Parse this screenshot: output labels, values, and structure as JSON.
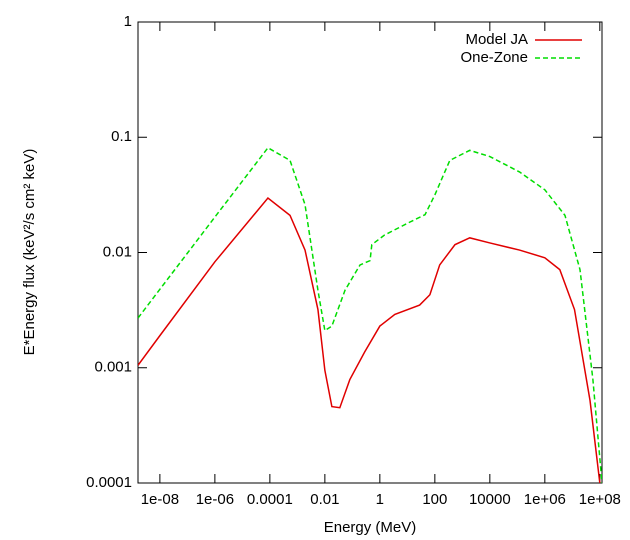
{
  "chart_data": {
    "type": "line",
    "xlabel": "Energy (MeV)",
    "ylabel": "E*Energy flux (keV²/s cm² keV)",
    "xscale": "log",
    "yscale": "log",
    "xlim": [
      1.6e-09,
      120000000.0
    ],
    "ylim": [
      0.0001,
      1
    ],
    "xticks": [
      {
        "value": 1e-08,
        "label": "1e-08"
      },
      {
        "value": 1e-06,
        "label": "1e-06"
      },
      0.0001,
      0.01,
      1,
      100,
      10000,
      {
        "value": 1000000.0,
        "label": "1e+06"
      },
      {
        "value": 100000000.0,
        "label": "1e+08"
      }
    ],
    "yticks": [
      0.0001,
      0.001,
      0.01,
      0.1,
      1
    ],
    "legend": "upper right",
    "series": [
      {
        "name": "Model JA",
        "color": "#e00000",
        "dash": false,
        "x": [
          1.6e-09,
          1e-08,
          1e-06,
          8.5e-05,
          0.00054,
          0.0019,
          0.0056,
          0.01,
          0.018,
          0.035,
          0.081,
          0.28,
          1,
          3.5,
          28,
          66,
          150,
          540,
          1860,
          10000,
          120000.0,
          1000000.0,
          3500000.0,
          12000000.0,
          44000000.0,
          100000000.0
        ],
        "values": [
          0.00105,
          0.0019,
          0.0083,
          0.0297,
          0.021,
          0.0105,
          0.0032,
          0.00095,
          0.00046,
          0.00045,
          0.00079,
          0.00137,
          0.0023,
          0.0029,
          0.0035,
          0.0043,
          0.0078,
          0.0117,
          0.0134,
          0.0121,
          0.0105,
          0.009,
          0.0071,
          0.0032,
          0.00052,
          0.0001
        ]
      },
      {
        "name": "One-Zone",
        "color": "#00dd00",
        "dash": true,
        "x": [
          1.6e-09,
          1e-06,
          8.5e-05,
          0.00054,
          0.0019,
          0.0056,
          0.01,
          0.018,
          0.054,
          0.19,
          0.44,
          0.51,
          1.5,
          12,
          44,
          100,
          350,
          1860,
          10000,
          120000.0,
          1000000.0,
          5400000.0,
          19000000.0,
          56000000.0,
          120000000.0
        ],
        "values": [
          0.0027,
          0.0203,
          0.081,
          0.063,
          0.026,
          0.0047,
          0.0021,
          0.0023,
          0.0047,
          0.0078,
          0.0085,
          0.0117,
          0.0142,
          0.0183,
          0.0213,
          0.0316,
          0.063,
          0.077,
          0.068,
          0.05,
          0.035,
          0.021,
          0.0071,
          0.00079,
          0.0001
        ]
      }
    ]
  }
}
